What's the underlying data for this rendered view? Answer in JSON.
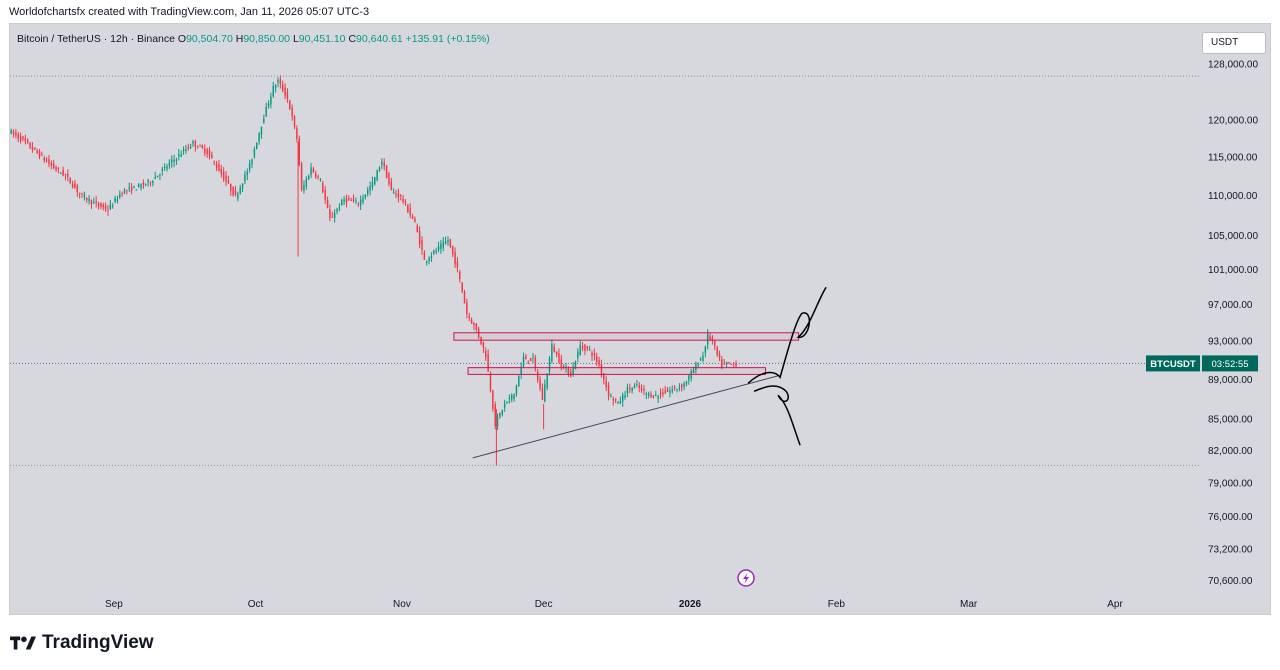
{
  "credit": "Worldofchartsfx created with TradingView.com, Jan 11, 2026 05:07 UTC-3",
  "legend": {
    "symbol": "Bitcoin / TetherUS · 12h · Binance",
    "open": "90,504.70",
    "high": "90,850.00",
    "low": "90,451.10",
    "close": "90,640.61",
    "change": "+135.91 (+0.15%)"
  },
  "currency_button": "USDT",
  "price_tag": {
    "symbol": "BTCUSDT",
    "countdown": "03:52:55"
  },
  "footer_brand": "TradingView",
  "colors": {
    "up": "#089981",
    "down": "#f23645",
    "background": "#d6d8de",
    "tag": "#00695c"
  },
  "chart_data": {
    "type": "candlestick",
    "y_scale": "log",
    "ylim": [
      69500,
      134000
    ],
    "y_ticks": [
      {
        "value": 128000,
        "label": "128,000.00"
      },
      {
        "value": 120000,
        "label": "120,000.00"
      },
      {
        "value": 115000,
        "label": "115,000.00"
      },
      {
        "value": 110000,
        "label": "110,000.00"
      },
      {
        "value": 105000,
        "label": "105,000.00"
      },
      {
        "value": 101000,
        "label": "101,000.00"
      },
      {
        "value": 97000,
        "label": "97,000.00"
      },
      {
        "value": 93000,
        "label": "93,000.00"
      },
      {
        "value": 89000,
        "label": "89,000.00"
      },
      {
        "value": 85000,
        "label": "85,000.00"
      },
      {
        "value": 82000,
        "label": "82,000.00"
      },
      {
        "value": 79000,
        "label": "79,000.00"
      },
      {
        "value": 76000,
        "label": "76,000.00"
      },
      {
        "value": 73200,
        "label": "73,200.00"
      },
      {
        "value": 70600,
        "label": "70,600.00"
      }
    ],
    "xlim": [
      "2025-08-10",
      "2026-04-19"
    ],
    "x_ticks": [
      {
        "date": "2025-09-01",
        "label": "Sep"
      },
      {
        "date": "2025-10-01",
        "label": "Oct"
      },
      {
        "date": "2025-11-01",
        "label": "Nov"
      },
      {
        "date": "2025-12-01",
        "label": "Dec"
      },
      {
        "date": "2026-01-01",
        "label": "2026"
      },
      {
        "date": "2026-02-01",
        "label": "Feb"
      },
      {
        "date": "2026-03-01",
        "label": "Mar"
      },
      {
        "date": "2026-04-01",
        "label": "Apr"
      }
    ],
    "dotted_levels": [
      126200,
      80600
    ],
    "last_price": 90640.61,
    "price_path": [
      [
        "2025-08-10",
        118500
      ],
      [
        "2025-08-13",
        117200
      ],
      [
        "2025-08-16",
        115500
      ],
      [
        "2025-08-19",
        113800
      ],
      [
        "2025-08-22",
        112500
      ],
      [
        "2025-08-25",
        110200
      ],
      [
        "2025-08-28",
        109000
      ],
      [
        "2025-08-31",
        108200
      ],
      [
        "2025-09-03",
        110500
      ],
      [
        "2025-09-06",
        111000
      ],
      [
        "2025-09-09",
        111800
      ],
      [
        "2025-09-12",
        113500
      ],
      [
        "2025-09-15",
        115200
      ],
      [
        "2025-09-18",
        116800
      ],
      [
        "2025-09-21",
        115600
      ],
      [
        "2025-09-24",
        112800
      ],
      [
        "2025-09-27",
        109800
      ],
      [
        "2025-09-30",
        113800
      ],
      [
        "2025-10-03",
        120500
      ],
      [
        "2025-10-05",
        124500
      ],
      [
        "2025-10-06",
        125500
      ],
      [
        "2025-10-08",
        123000
      ],
      [
        "2025-10-10",
        117500
      ],
      [
        "2025-10-11",
        110500
      ],
      [
        "2025-10-13",
        113500
      ],
      [
        "2025-10-15",
        111800
      ],
      [
        "2025-10-17",
        107000
      ],
      [
        "2025-10-20",
        109500
      ],
      [
        "2025-10-23",
        109000
      ],
      [
        "2025-10-26",
        111500
      ],
      [
        "2025-10-28",
        114500
      ],
      [
        "2025-10-30",
        110500
      ],
      [
        "2025-11-01",
        109800
      ],
      [
        "2025-11-04",
        106500
      ],
      [
        "2025-11-06",
        102000
      ],
      [
        "2025-11-09",
        103500
      ],
      [
        "2025-11-11",
        104500
      ],
      [
        "2025-11-13",
        101000
      ],
      [
        "2025-11-15",
        96000
      ],
      [
        "2025-11-17",
        94200
      ],
      [
        "2025-11-19",
        91500
      ],
      [
        "2025-11-21",
        84500
      ],
      [
        "2025-11-23",
        86500
      ],
      [
        "2025-11-25",
        87500
      ],
      [
        "2025-11-27",
        91200
      ],
      [
        "2025-11-29",
        91000
      ],
      [
        "2025-12-01",
        87000
      ],
      [
        "2025-12-03",
        92500
      ],
      [
        "2025-12-05",
        90500
      ],
      [
        "2025-12-07",
        89500
      ],
      [
        "2025-12-09",
        92500
      ],
      [
        "2025-12-11",
        92000
      ],
      [
        "2025-12-13",
        90500
      ],
      [
        "2025-12-15",
        87500
      ],
      [
        "2025-12-17",
        86500
      ],
      [
        "2025-12-19",
        88000
      ],
      [
        "2025-12-21",
        88300
      ],
      [
        "2025-12-23",
        87500
      ],
      [
        "2025-12-25",
        87300
      ],
      [
        "2025-12-27",
        87700
      ],
      [
        "2025-12-29",
        88000
      ],
      [
        "2025-12-31",
        88500
      ],
      [
        "2026-01-02",
        90000
      ],
      [
        "2026-01-04",
        91500
      ],
      [
        "2026-01-05",
        93600
      ],
      [
        "2026-01-06",
        93000
      ],
      [
        "2026-01-07",
        91500
      ],
      [
        "2026-01-08",
        90400
      ],
      [
        "2026-01-09",
        90600
      ],
      [
        "2026-01-10",
        90500
      ],
      [
        "2026-01-11",
        90640
      ]
    ],
    "drawings": {
      "upper_zone": {
        "x": [
          "2025-11-12",
          "2026-01-24"
        ],
        "y": [
          93100,
          93900
        ]
      },
      "lower_zone": {
        "x": [
          "2025-11-15",
          "2026-01-17"
        ],
        "y": [
          89500,
          90200
        ]
      },
      "trendline": {
        "x": [
          "2025-11-16",
          "2026-01-20"
        ],
        "y": [
          81300,
          89400
        ]
      }
    }
  }
}
